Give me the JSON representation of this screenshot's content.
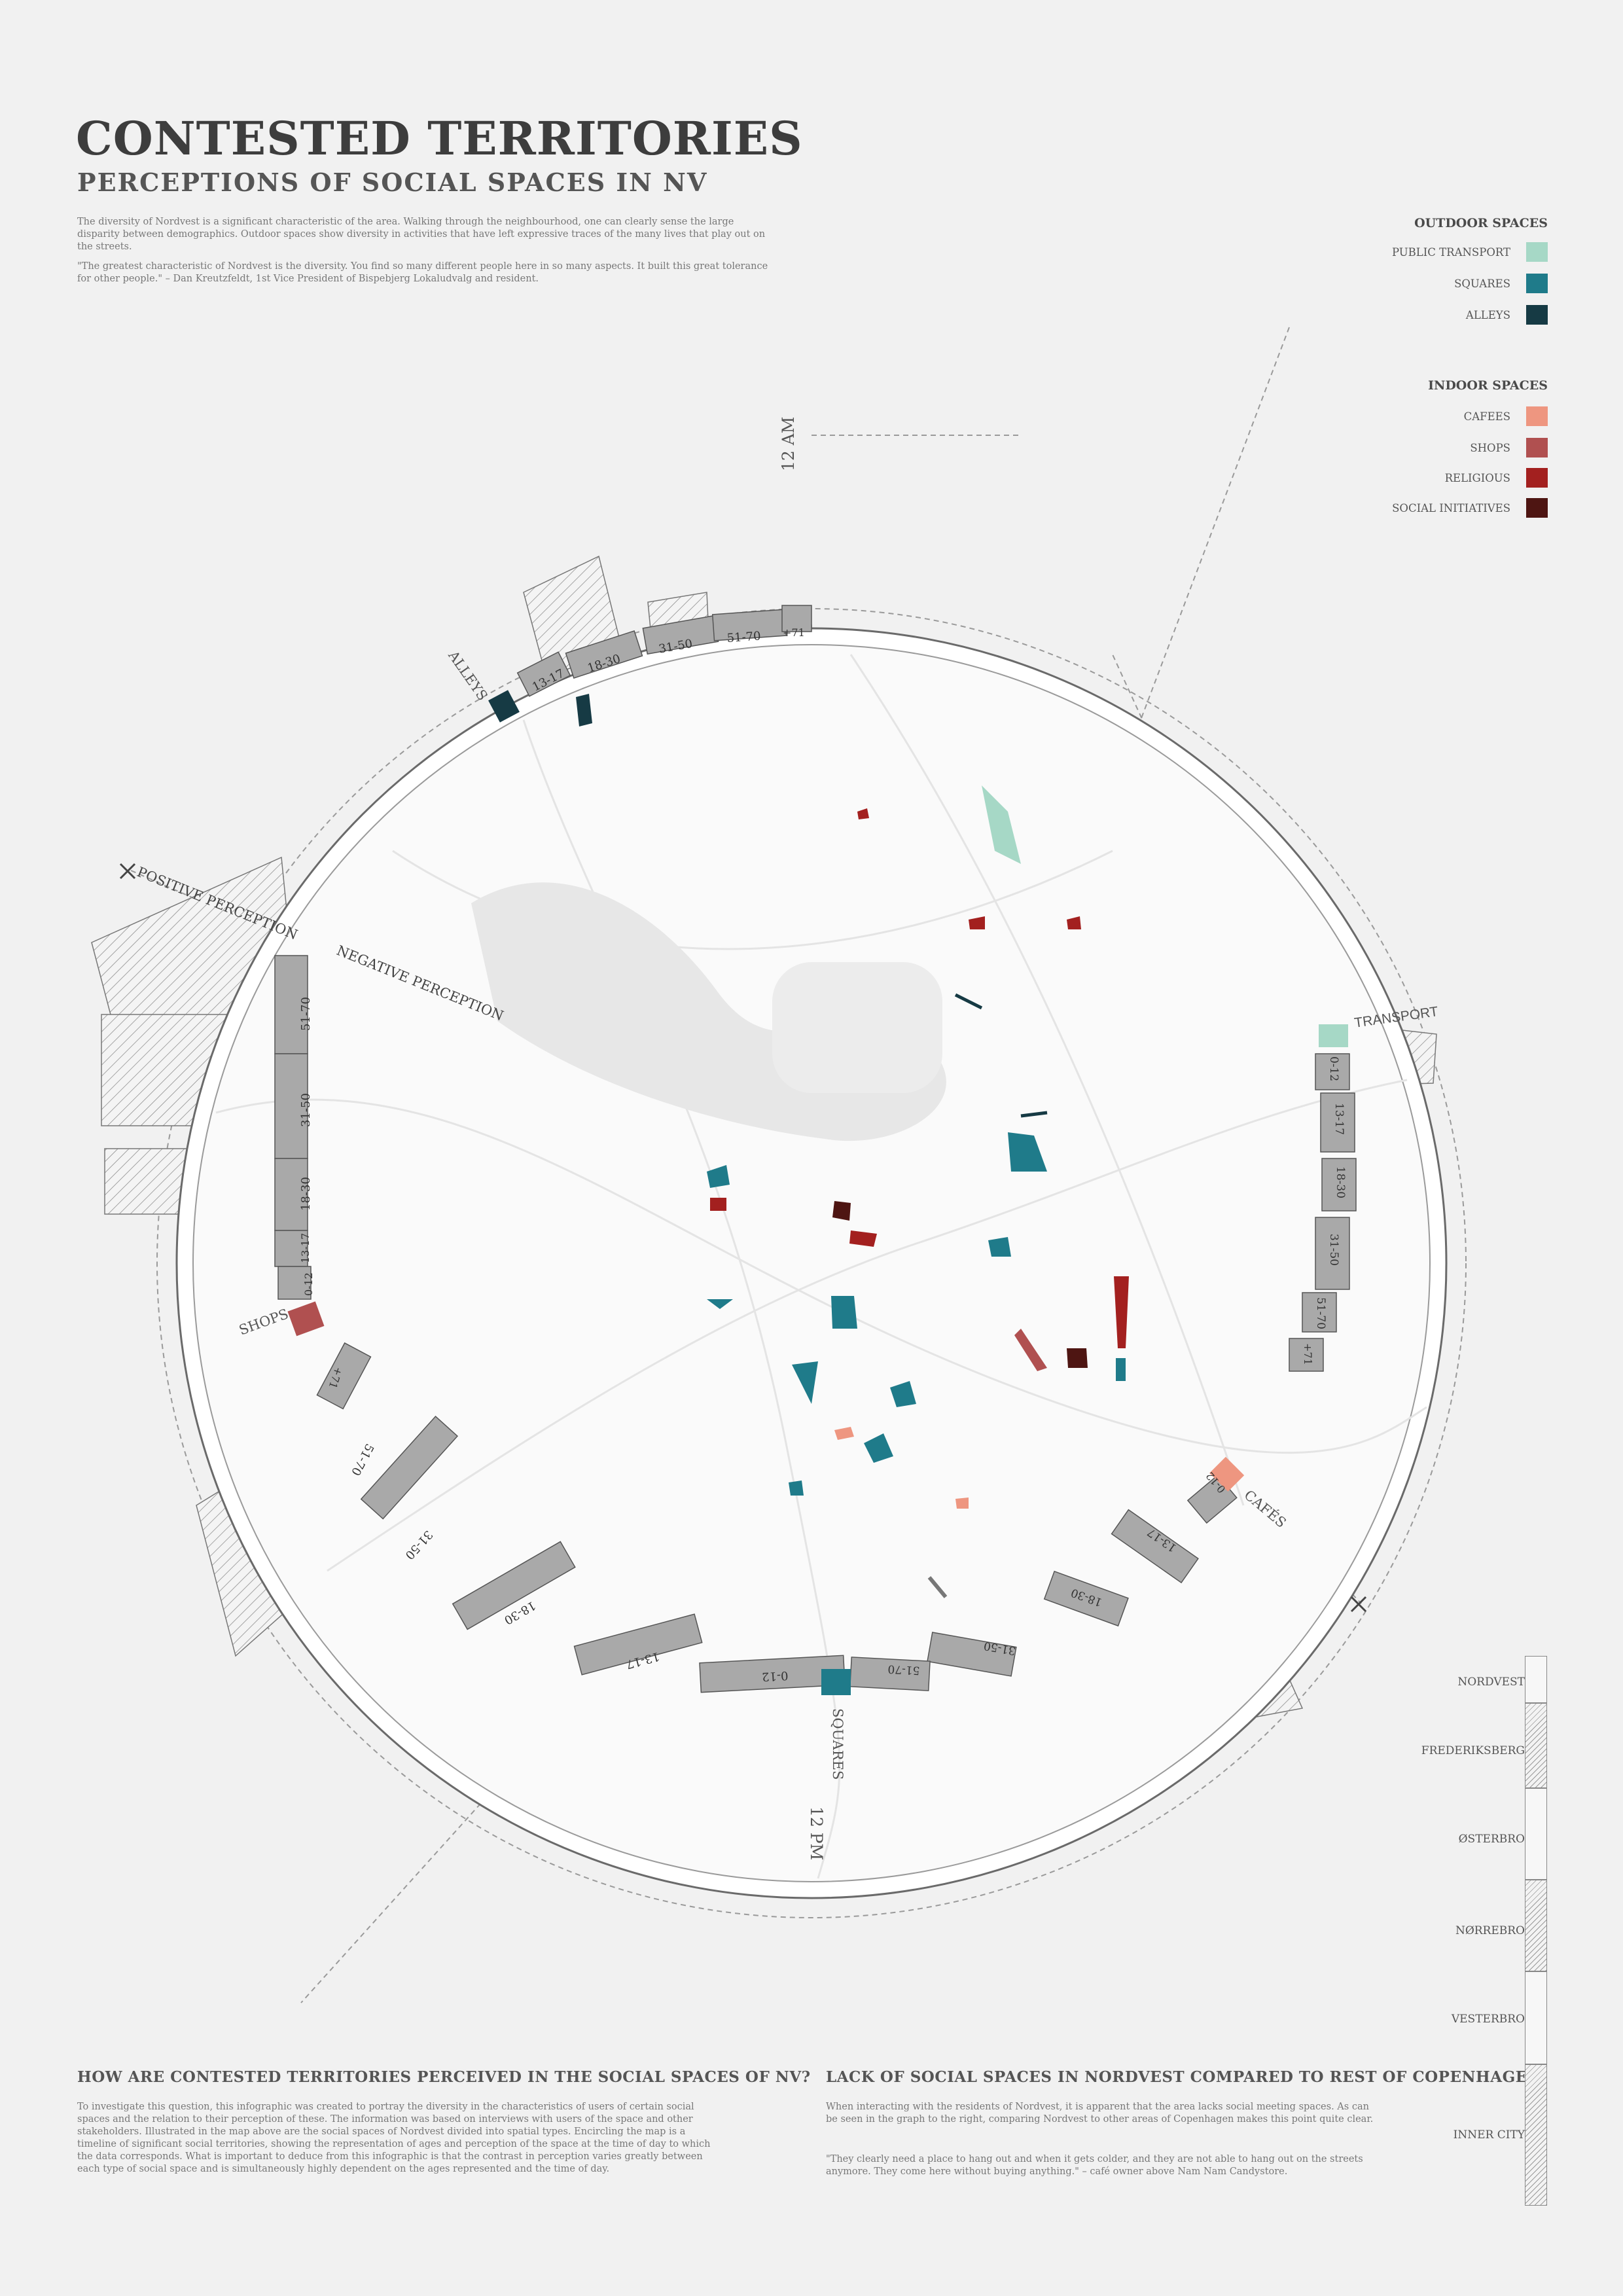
{
  "header": {
    "title": "CONTESTED TERRITORIES",
    "subtitle": "PERCEPTIONS OF SOCIAL SPACES IN NV",
    "intro_1": "The diversity of Nordvest is a significant characteristic of the area. Walking through the neighbourhood, one can clearly sense the large disparity between demographics. Outdoor spaces show diversity in activities that have left expressive traces of the many lives that play out on the streets.",
    "intro_2": "\"The greatest characteristic of Nordvest is the diversity. You find so many different people here in so many aspects. It built this great tolerance for other people.\" – Dan Kreutzfeldt, 1st Vice President of Bispebjerg Lokaludvalg and resident."
  },
  "legend": {
    "outdoor_title": "OUTDOOR SPACES",
    "outdoor": [
      {
        "label": "PUBLIC TRANSPORT",
        "color": "#a6d8c6"
      },
      {
        "label": "SQUARES",
        "color": "#1f7b8a"
      },
      {
        "label": "ALLEYS",
        "color": "#163a44"
      }
    ],
    "indoor_title": "INDOOR SPACES",
    "indoor": [
      {
        "label": "CAFEES",
        "color": "#ee9680"
      },
      {
        "label": "SHOPS",
        "color": "#b05050"
      },
      {
        "label": "RELIGIOUS",
        "color": "#a3201f"
      },
      {
        "label": "SOCIAL INITIATIVES",
        "color": "#4e1512"
      }
    ]
  },
  "diagram": {
    "time_top": "12 AM",
    "time_bottom": "12 PM",
    "positive": "POSITIVE PERCEPTION",
    "negative": "NEGATIVE PERCEPTION",
    "categories": {
      "alleys": "ALLEYS",
      "transport": "TRANSPORT",
      "cafes": "CAFÉS",
      "squares": "SQUARES",
      "shops": "SHOPS"
    },
    "age_groups": [
      "0-12",
      "13-17",
      "18-30",
      "31-50",
      "51-70",
      "+71"
    ]
  },
  "bottom": {
    "left_heading": "HOW ARE CONTESTED TERRITORIES PERCEIVED IN THE SOCIAL SPACES OF NV?",
    "left_text": "To investigate this question, this infographic was created to portray the diversity in the characteristics of users of certain social spaces and the relation to their perception of these. The information was based on interviews with users of the space and other stakeholders. Illustrated in the map above are the social spaces of Nordvest divided into spatial types. Encircling the map is a timeline of significant social territories, showing the representation of ages and perception of the space at the time of day to which the data corresponds. What is important to deduce from this infographic is that the contrast in perception varies greatly between each type of social space and is simultaneously highly dependent on the ages represented and the time of day.",
    "right_heading": "LACK OF SOCIAL SPACES IN NORDVEST COMPARED TO REST OF COPENHAGEN",
    "right_text_1": "When interacting with the residents of Nordvest, it is apparent that the area lacks social meeting spaces. As can be seen in the graph to the right, comparing Nordvest to other areas of Copenhagen makes this point quite clear.",
    "right_text_2": "\"They clearly need a place to hang out and when it gets colder, and they are not able to hang out on the streets anymore. They come here without buying anything.\" – café owner above Nam Nam Candystore."
  },
  "comparison": {
    "areas": [
      "NORDVEST",
      "FREDERIKSBERG",
      "ØSTERBRO",
      "NØRREBRO",
      "VESTERBRO",
      "INNER CITY"
    ]
  }
}
